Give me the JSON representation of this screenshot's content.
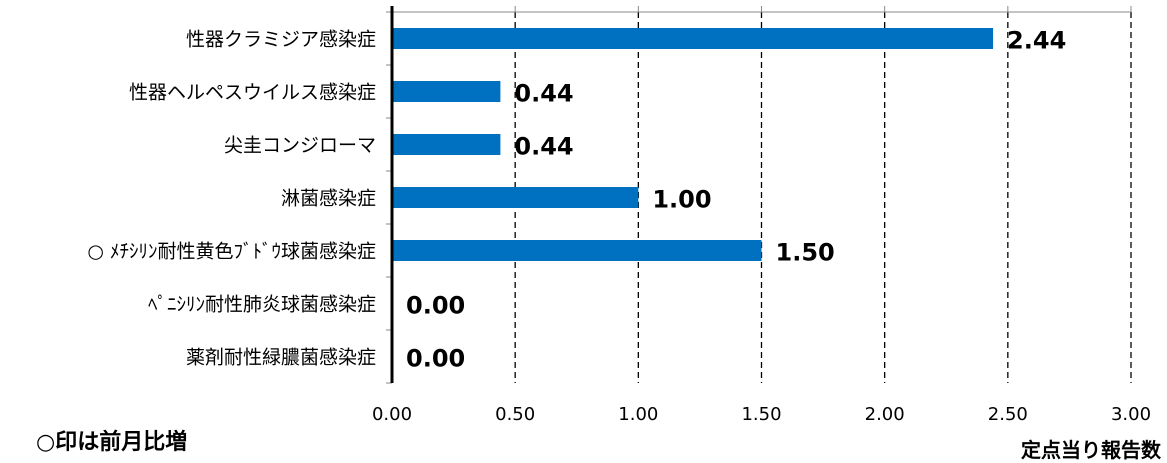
{
  "chart_data": {
    "type": "bar",
    "orientation": "horizontal",
    "categories": [
      "性器クラミジア感染症",
      "性器ヘルペスウイルス感染症",
      "尖圭コンジローマ",
      "淋菌感染症",
      "○ ﾒﾁｼﾘﾝ耐性黄色ﾌﾞﾄﾞｳ球菌感染症",
      "ﾍﾟﾆｼﾘﾝ耐性肺炎球菌感染症",
      "薬剤耐性緑膿菌感染症"
    ],
    "values": [
      2.44,
      0.44,
      0.44,
      1.0,
      1.5,
      0.0,
      0.0
    ],
    "data_labels": [
      "2.44",
      "0.44",
      "0.44",
      "1.00",
      "1.50",
      "0.00",
      "0.00"
    ],
    "xlim": [
      0,
      3
    ],
    "xticks": [
      0,
      0.5,
      1.0,
      1.5,
      2.0,
      2.5,
      3.0
    ],
    "xtick_labels": [
      "0.00",
      "0.50",
      "1.00",
      "1.50",
      "2.00",
      "2.50",
      "3.00"
    ],
    "xlabel": "定点当り報告数",
    "ylabel": "",
    "title": "",
    "grid": "vertical dashed",
    "bar_color": "#0070C0"
  },
  "note": "○印は前月比増"
}
